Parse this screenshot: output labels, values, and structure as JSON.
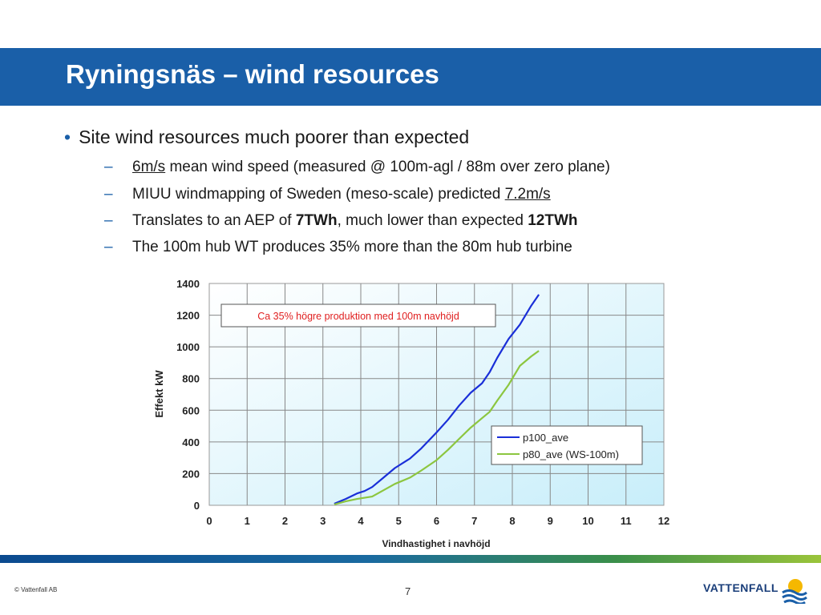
{
  "slide": {
    "title": "Ryningsnäs – wind resources",
    "bullet_main": "Site wind resources much poorer than expected",
    "sub1": {
      "u": "6m/s",
      "text": " mean wind speed (measured @ 100m-agl / 88m over zero plane)"
    },
    "sub2": {
      "text": "MIUU windmapping of Sweden (meso-scale) predicted ",
      "u": "7.2m/s"
    },
    "sub3": {
      "a": "Translates to an AEP of ",
      "b1": "7TWh",
      "c": ", much lower than expected ",
      "b2": "12TWh"
    },
    "sub4": "The 100m hub WT produces 35% more than the 80m hub turbine"
  },
  "footer": {
    "copyright": "© Vattenfall AB",
    "page": "7",
    "brand": "VATTENFALL"
  },
  "chart_data": {
    "type": "line",
    "ylabel": "Effekt kW",
    "xlabel": "Vindhastighet i navhöjd",
    "xlim": [
      0,
      12
    ],
    "ylim": [
      0,
      1400
    ],
    "xticks": [
      0,
      1,
      2,
      3,
      4,
      5,
      6,
      7,
      8,
      9,
      10,
      11,
      12
    ],
    "yticks": [
      0,
      200,
      400,
      600,
      800,
      1000,
      1200,
      1400
    ],
    "annotation": "Ca 35% högre produktion med 100m navhöjd",
    "legend_position": "bottom-right",
    "grid": true,
    "series": [
      {
        "name": "p100_ave",
        "color": "#1a2fd8",
        "x": [
          3.3,
          3.6,
          3.9,
          4.1,
          4.3,
          4.6,
          4.9,
          5.3,
          5.6,
          6.0,
          6.3,
          6.6,
          6.9,
          7.2,
          7.4,
          7.6,
          7.9,
          8.2,
          8.5,
          8.7
        ],
        "y": [
          10,
          40,
          75,
          90,
          115,
          175,
          235,
          295,
          360,
          460,
          540,
          630,
          710,
          770,
          840,
          930,
          1050,
          1140,
          1260,
          1330
        ]
      },
      {
        "name": "p80_ave (WS-100m)",
        "color": "#8cc63f",
        "x": [
          3.3,
          3.6,
          3.9,
          4.3,
          4.6,
          4.9,
          5.3,
          5.6,
          6.0,
          6.3,
          6.6,
          6.9,
          7.2,
          7.4,
          7.6,
          7.9,
          8.2,
          8.5,
          8.7
        ],
        "y": [
          5,
          25,
          40,
          55,
          95,
          135,
          175,
          220,
          285,
          350,
          420,
          490,
          550,
          590,
          660,
          760,
          880,
          940,
          975
        ]
      }
    ]
  }
}
